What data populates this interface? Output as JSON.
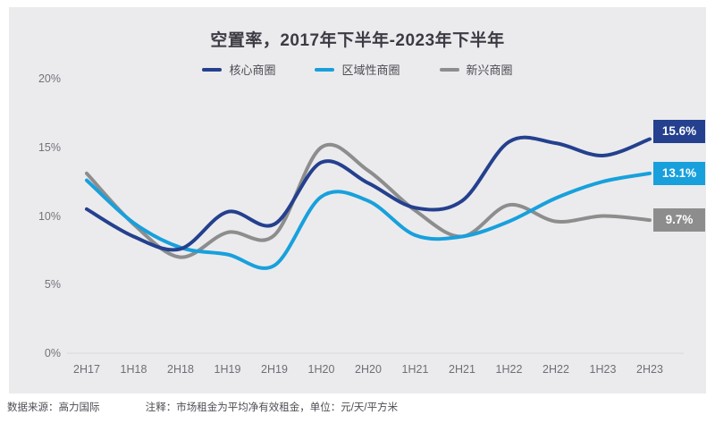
{
  "title": "空置率，2017年下半年-2023年下半年",
  "legend": {
    "items": [
      {
        "key": "core",
        "label": "核心商圈",
        "color": "#24408E"
      },
      {
        "key": "regional",
        "label": "区域性商圈",
        "color": "#18A0DC"
      },
      {
        "key": "emerging",
        "label": "新兴商圈",
        "color": "#8D8D8D"
      }
    ]
  },
  "y_axis": {
    "tick_labels": [
      "20%",
      "15%",
      "10%",
      "5%",
      "0%"
    ],
    "tick_values": [
      20,
      15,
      10,
      5,
      0
    ]
  },
  "chart_data": {
    "type": "line",
    "title": "空置率，2017年下半年-2023年下半年",
    "categories": [
      "2H17",
      "1H18",
      "2H18",
      "1H19",
      "2H19",
      "1H20",
      "2H20",
      "1H21",
      "2H21",
      "1H22",
      "2H22",
      "1H23",
      "2H23"
    ],
    "series": [
      {
        "key": "core",
        "name": "核心商圈",
        "color": "#24408E",
        "values": [
          10.5,
          8.5,
          7.6,
          10.3,
          9.4,
          13.9,
          12.4,
          10.6,
          11.1,
          15.4,
          15.3,
          14.4,
          15.6
        ],
        "end_label": "15.6%"
      },
      {
        "key": "regional",
        "name": "区域性商圈",
        "color": "#18A0DC",
        "values": [
          12.6,
          9.5,
          7.7,
          7.2,
          6.4,
          11.4,
          11.1,
          8.6,
          8.5,
          9.6,
          11.3,
          12.5,
          13.1
        ],
        "end_label": "13.1%"
      },
      {
        "key": "emerging",
        "name": "新兴商圈",
        "color": "#8D8D8D",
        "values": [
          13.1,
          9.4,
          7.0,
          8.8,
          8.6,
          15.0,
          13.3,
          10.4,
          8.5,
          10.8,
          9.6,
          10.0,
          9.7
        ],
        "end_label": "9.7%"
      }
    ],
    "ylim": [
      0,
      20
    ],
    "xlabel": "",
    "ylabel": "",
    "grid": "baseline-only",
    "legend_position": "top"
  },
  "footer": {
    "source": "数据来源：高力国际",
    "note": "注释：市场租金为平均净有效租金，单位：元/天/平方米"
  }
}
